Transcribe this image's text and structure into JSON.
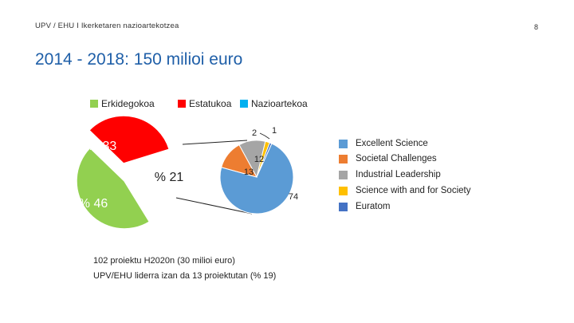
{
  "header": {
    "text": "UPV / EHU I  Ikerketaren nazioartekotzea",
    "page_number": "8"
  },
  "title": "2014 - 2018: 150 milioi euro",
  "top_legend": [
    {
      "label": "Erkidegokoa",
      "color": "#92d050"
    },
    {
      "label": "Estatukoa",
      "color": "#ff0000"
    },
    {
      "label": "Nazioartekoa",
      "color": "#00b0f0"
    }
  ],
  "chart_data": [
    {
      "type": "pie",
      "categories": [
        "Erkidegokoa",
        "Estatukoa",
        "Nazioartekoa"
      ],
      "values": [
        46,
        33,
        21
      ],
      "data_labels": [
        "% 46",
        "% 33",
        "% 21"
      ],
      "colors": [
        "#92d050",
        "#ff0000",
        "#ffffff"
      ]
    },
    {
      "type": "pie",
      "categories": [
        "Excellent Science",
        "Societal Challenges",
        "Industrial Leadership",
        "Science with and for Society",
        "Euratom"
      ],
      "values": [
        74,
        13,
        12,
        2,
        1
      ],
      "data_labels": [
        "74",
        "13",
        "12",
        "2",
        "1"
      ],
      "colors": [
        "#5b9bd5",
        "#ed7d31",
        "#a5a5a5",
        "#ffc000",
        "#4472c4"
      ]
    }
  ],
  "right_legend": [
    {
      "label": "Excellent Science",
      "color": "#5b9bd5"
    },
    {
      "label": "Societal Challenges",
      "color": "#ed7d31"
    },
    {
      "label": "Industrial Leadership",
      "color": "#a5a5a5"
    },
    {
      "label": "Science with and for Society",
      "color": "#ffc000"
    },
    {
      "label": "Euratom",
      "color": "#4472c4"
    }
  ],
  "notes": [
    "102 proiektu H2020n (30 milioi euro)",
    "UPV/EHU liderra izan da 13 proiektutan (% 19)"
  ]
}
